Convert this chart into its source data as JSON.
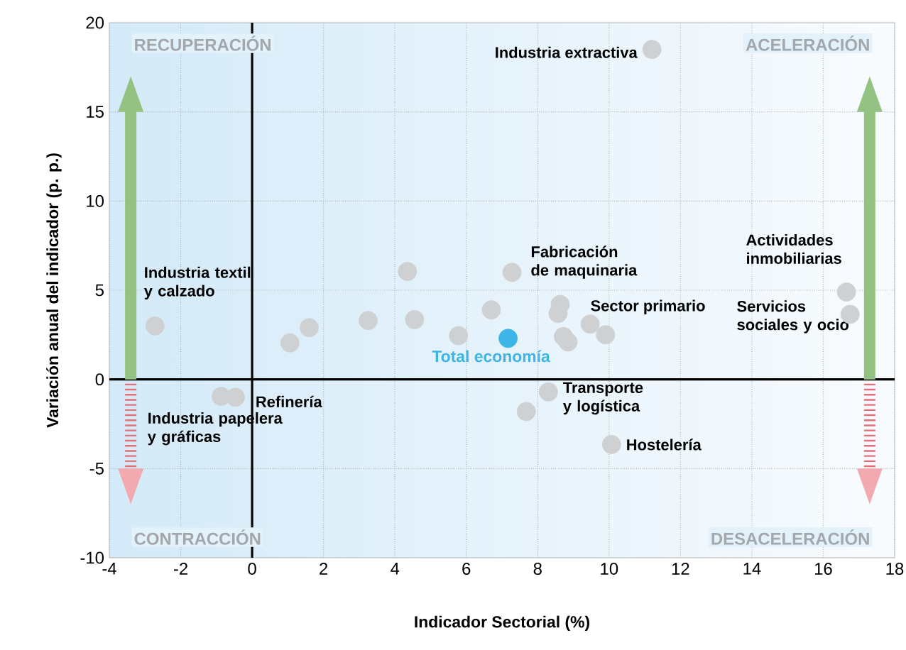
{
  "chart_data": {
    "type": "scatter",
    "xlabel": "Indicador Sectorial (%)",
    "ylabel": "Variación anual del indicador (p. p.)",
    "xlim": [
      -4,
      18
    ],
    "ylim": [
      -10,
      20
    ],
    "xticks": [
      -4,
      -2,
      0,
      2,
      4,
      6,
      8,
      10,
      12,
      14,
      16,
      18
    ],
    "yticks": [
      -10,
      -5,
      0,
      5,
      10,
      15,
      20
    ],
    "grid": true,
    "series": [
      {
        "color": "#cfd0d2",
        "x": [
          -2.72,
          -0.87,
          -0.47,
          1.06,
          1.6,
          3.25,
          4.35,
          4.55,
          5.78,
          6.7,
          7.28,
          8.63,
          8.57,
          8.72,
          8.85,
          9.47,
          9.9,
          8.3,
          7.68,
          10.07,
          11.2,
          16.65,
          16.75
        ],
        "values": [
          3.0,
          -0.95,
          -1.0,
          2.05,
          2.9,
          3.3,
          6.05,
          3.35,
          2.45,
          3.9,
          6.0,
          4.2,
          3.7,
          2.4,
          2.1,
          3.1,
          2.5,
          -0.7,
          -1.8,
          -3.65,
          18.5,
          4.9,
          3.65
        ]
      },
      {
        "name": "Total economía",
        "color": "#3db5e6",
        "x": [
          7.17
        ],
        "values": [
          2.3
        ]
      }
    ],
    "annotations": [
      "RECUPERACIÓN",
      "ACELERACIÓN",
      "CONTRACCIÓN",
      "DESACELERACIÓN",
      {
        "text": "Industria textil y calzado",
        "x": -2.72,
        "y": 3.0
      },
      {
        "text": "Refinería",
        "x": -0.47,
        "y": -1.0
      },
      {
        "text": "Industria papelera y gráficas",
        "x": -0.87,
        "y": -0.95
      },
      {
        "text": "Fabricación de maquinaria",
        "x": 7.28,
        "y": 6.0
      },
      {
        "text": "Sector primario",
        "x": 9.47,
        "y": 3.1
      },
      {
        "text": "Transporte y logística",
        "x": 8.3,
        "y": -0.7
      },
      {
        "text": "Hostelería",
        "x": 10.07,
        "y": -3.65
      },
      {
        "text": "Industria extractiva",
        "x": 11.2,
        "y": 18.5
      },
      {
        "text": "Actividades inmobiliarias",
        "x": 16.65,
        "y": 4.9
      },
      {
        "text": "Servicios sociales y ocio",
        "x": 16.75,
        "y": 3.65
      }
    ]
  }
}
